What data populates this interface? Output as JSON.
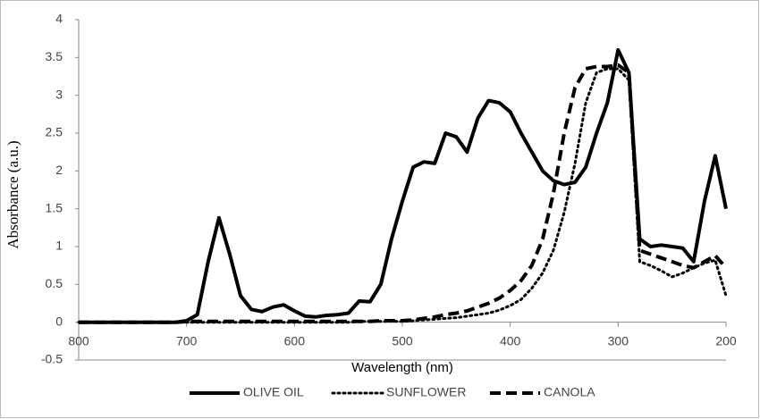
{
  "chart_data": {
    "type": "line",
    "x_label": "Wavelength (nm)",
    "y_label": "Absorbance (a.u.)",
    "xlim": [
      800,
      200
    ],
    "xticks": [
      800,
      700,
      600,
      500,
      400,
      300,
      200
    ],
    "ylim": [
      -0.5,
      4
    ],
    "yticks": [
      -0.5,
      0,
      0.5,
      1,
      1.5,
      2,
      2.5,
      3,
      3.5,
      4
    ],
    "grid": false,
    "legend": "bottom",
    "x": [
      800,
      790,
      780,
      770,
      760,
      750,
      740,
      730,
      720,
      710,
      700,
      690,
      680,
      670,
      660,
      650,
      640,
      630,
      620,
      610,
      600,
      590,
      580,
      570,
      560,
      550,
      540,
      530,
      520,
      510,
      500,
      490,
      480,
      470,
      460,
      450,
      440,
      430,
      420,
      410,
      400,
      390,
      380,
      370,
      360,
      350,
      340,
      330,
      320,
      310,
      300,
      290,
      280,
      270,
      260,
      250,
      240,
      230,
      220,
      210,
      200
    ],
    "series": [
      {
        "name": "OLIVE OIL",
        "color": "#000000",
        "style": "solid",
        "values": [
          0,
          0,
          0,
          0,
          0,
          0,
          0,
          0,
          0,
          0,
          0.02,
          0.1,
          0.8,
          1.38,
          0.9,
          0.35,
          0.17,
          0.14,
          0.2,
          0.23,
          0.15,
          0.08,
          0.07,
          0.09,
          0.1,
          0.12,
          0.28,
          0.27,
          0.5,
          1.1,
          1.6,
          2.05,
          2.12,
          2.1,
          2.5,
          2.45,
          2.25,
          2.7,
          2.93,
          2.9,
          2.78,
          2.5,
          2.25,
          2.0,
          1.87,
          1.82,
          1.85,
          2.05,
          2.5,
          2.9,
          3.6,
          3.3,
          1.1,
          1.0,
          1.02,
          1.0,
          0.98,
          0.8,
          1.6,
          2.2,
          1.5
        ]
      },
      {
        "name": "SUNFLOWER",
        "color": "#000000",
        "style": "dotted",
        "values": [
          0,
          0,
          0,
          0,
          0,
          0,
          0,
          0,
          0,
          0,
          0,
          0,
          0,
          0,
          0,
          0,
          0,
          0,
          0,
          0,
          0,
          0,
          0,
          0,
          0,
          0,
          0.01,
          0.01,
          0.01,
          0.01,
          0.01,
          0.02,
          0.03,
          0.04,
          0.05,
          0.06,
          0.08,
          0.1,
          0.12,
          0.16,
          0.22,
          0.3,
          0.45,
          0.65,
          0.95,
          1.45,
          2.1,
          2.9,
          3.3,
          3.35,
          3.35,
          3.2,
          0.8,
          0.75,
          0.68,
          0.6,
          0.65,
          0.72,
          0.78,
          0.82,
          0.35
        ]
      },
      {
        "name": "CANOLA",
        "color": "#000000",
        "style": "dashed",
        "values": [
          0,
          0,
          0,
          0,
          0,
          0,
          0,
          0,
          0,
          0,
          0.01,
          0.01,
          0.01,
          0.01,
          0.01,
          0.01,
          0.01,
          0.01,
          0.01,
          0.01,
          0.01,
          0.01,
          0.01,
          0.01,
          0.01,
          0.01,
          0.01,
          0.01,
          0.02,
          0.02,
          0.02,
          0.03,
          0.05,
          0.07,
          0.1,
          0.12,
          0.15,
          0.2,
          0.25,
          0.32,
          0.42,
          0.55,
          0.75,
          1.1,
          1.7,
          2.5,
          3.1,
          3.35,
          3.38,
          3.38,
          3.4,
          3.3,
          0.95,
          0.9,
          0.85,
          0.8,
          0.75,
          0.72,
          0.8,
          0.88,
          0.72
        ]
      }
    ]
  }
}
